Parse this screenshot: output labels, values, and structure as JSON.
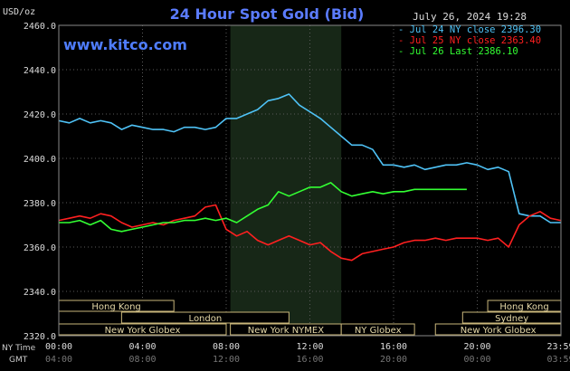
{
  "chart_data": {
    "type": "line",
    "title": "24 Hour Spot Gold (Bid)",
    "source": "www.kitco.com",
    "timestamp": "July 26, 2024 19:28",
    "y_unit": "USD/oz",
    "ylim": [
      2320,
      2460
    ],
    "y_ticks": [
      "2460.0",
      "2440.0",
      "2420.0",
      "2400.0",
      "2380.0",
      "2360.0",
      "2340.0",
      "2320.0"
    ],
    "x_row_labels": [
      "NY Time",
      "GMT"
    ],
    "x_ticks_ny": [
      "00:00",
      "04:00",
      "08:00",
      "12:00",
      "16:00",
      "20:00",
      "23:59"
    ],
    "x_ticks_gmt": [
      "04:00",
      "08:00",
      "12:00",
      "16:00",
      "20:00",
      "00:00",
      "03:59"
    ],
    "grid": true,
    "legend_position": "top-right",
    "series": [
      {
        "name": "Jul 24 NY close 2396.30",
        "color": "#4fc3f7",
        "x": [
          0,
          0.5,
          1,
          1.5,
          2,
          2.5,
          3,
          3.5,
          4,
          4.5,
          5,
          5.5,
          6,
          6.5,
          7,
          7.5,
          8,
          8.5,
          9,
          9.5,
          10,
          10.5,
          11,
          11.5,
          12,
          12.5,
          13,
          13.5,
          14,
          14.5,
          15,
          15.5,
          16,
          16.5,
          17,
          17.5,
          18,
          18.5,
          19,
          19.5,
          20,
          20.5,
          21,
          21.5,
          22,
          22.5,
          23,
          23.5,
          23.98
        ],
        "y": [
          2417,
          2416,
          2418,
          2416,
          2417,
          2416,
          2413,
          2415,
          2414,
          2413,
          2413,
          2412,
          2414,
          2414,
          2413,
          2414,
          2418,
          2418,
          2420,
          2422,
          2426,
          2427,
          2429,
          2424,
          2421,
          2418,
          2414,
          2410,
          2406,
          2406,
          2404,
          2397,
          2397,
          2396,
          2397,
          2395,
          2396,
          2397,
          2397,
          2398,
          2397,
          2395,
          2396,
          2394,
          2375,
          2374,
          2374,
          2371,
          2371
        ]
      },
      {
        "name": "Jul 25 NY close 2363.40",
        "color": "#ff2020",
        "x": [
          0,
          0.5,
          1,
          1.5,
          2,
          2.5,
          3,
          3.5,
          4,
          4.5,
          5,
          5.5,
          6,
          6.5,
          7,
          7.5,
          8,
          8.5,
          9,
          9.5,
          10,
          10.5,
          11,
          11.5,
          12,
          12.5,
          13,
          13.5,
          14,
          14.5,
          15,
          15.5,
          16,
          16.5,
          17,
          17.5,
          18,
          18.5,
          19,
          19.5,
          20,
          20.5,
          21,
          21.5,
          22,
          22.5,
          23,
          23.5,
          23.98
        ],
        "y": [
          2372,
          2373,
          2374,
          2373,
          2375,
          2374,
          2371,
          2369,
          2370,
          2371,
          2370,
          2372,
          2373,
          2374,
          2378,
          2379,
          2368,
          2365,
          2367,
          2363,
          2361,
          2363,
          2365,
          2363,
          2361,
          2362,
          2358,
          2355,
          2354,
          2357,
          2358,
          2359,
          2360,
          2362,
          2363,
          2363,
          2364,
          2363,
          2364,
          2364,
          2364,
          2363,
          2364,
          2360,
          2370,
          2374,
          2376,
          2373,
          2372
        ]
      },
      {
        "name": "Jul 26 Last 2386.10",
        "color": "#33ff33",
        "x": [
          0,
          0.5,
          1,
          1.5,
          2,
          2.5,
          3,
          3.5,
          4,
          4.5,
          5,
          5.5,
          6,
          6.5,
          7,
          7.5,
          8,
          8.5,
          9,
          9.5,
          10,
          10.5,
          11,
          11.5,
          12,
          12.5,
          13,
          13.5,
          14,
          14.5,
          15,
          15.5,
          16,
          16.5,
          17,
          17.5,
          18,
          18.5,
          19,
          19.5
        ],
        "y": [
          2371,
          2371,
          2372,
          2370,
          2372,
          2368,
          2367,
          2368,
          2369,
          2370,
          2371,
          2371,
          2372,
          2372,
          2373,
          2372,
          2373,
          2371,
          2374,
          2377,
          2379,
          2385,
          2383,
          2385,
          2387,
          2387,
          2389,
          2385,
          2383,
          2384,
          2385,
          2384,
          2385,
          2385,
          2386,
          2386,
          2386,
          2386,
          2386,
          2386
        ]
      }
    ],
    "session_bars": [
      {
        "label": "Hong Kong",
        "row": 0,
        "start": 0,
        "end": 5.5
      },
      {
        "label": "London",
        "row": 1,
        "start": 3,
        "end": 11
      },
      {
        "label": "New York Globex",
        "row": 2,
        "start": 0,
        "end": 8
      },
      {
        "label": "New York NYMEX",
        "row": 2,
        "start": 8.2,
        "end": 13.5
      },
      {
        "label": "NY Globex",
        "row": 2,
        "start": 13.5,
        "end": 17
      },
      {
        "label": "Hong Kong",
        "row": 0,
        "start": 20.5,
        "end": 24
      },
      {
        "label": "Sydney",
        "row": 1,
        "start": 19.3,
        "end": 24
      },
      {
        "label": "New York Globex",
        "row": 2,
        "start": 18,
        "end": 24
      }
    ],
    "shaded_window": {
      "start": 8.2,
      "end": 13.5
    }
  }
}
